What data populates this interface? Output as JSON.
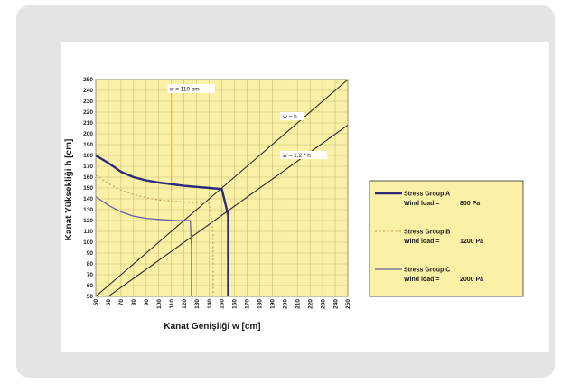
{
  "chart_data": {
    "type": "line",
    "xlabel": "Kanat Genişliği  w  [cm]",
    "ylabel": "Kanat Yüksekliği  h  [cm]",
    "xlim": [
      50,
      250
    ],
    "ylim": [
      50,
      250
    ],
    "x_ticks": [
      "50",
      "60",
      "70",
      "80",
      "90",
      "100",
      "110",
      "120",
      "130",
      "140",
      "150",
      "160",
      "170",
      "180",
      "190",
      "200",
      "210",
      "220",
      "230",
      "240",
      "250"
    ],
    "y_ticks": [
      "50",
      "60",
      "70",
      "80",
      "90",
      "100",
      "110",
      "120",
      "130",
      "140",
      "150",
      "160",
      "170",
      "180",
      "190",
      "200",
      "210",
      "220",
      "230",
      "240",
      "250"
    ],
    "grid": true,
    "legend_position": "right",
    "series": [
      {
        "name": "Stress Group A",
        "load_label": "Wind load =",
        "load_value": "800 Pa",
        "style": "solid-thick",
        "color": "#2b2a78",
        "points": [
          [
            50,
            180
          ],
          [
            60,
            173
          ],
          [
            70,
            165
          ],
          [
            80,
            160
          ],
          [
            90,
            157
          ],
          [
            100,
            155
          ],
          [
            120,
            152
          ],
          [
            140,
            150
          ],
          [
            150,
            149
          ],
          [
            155,
            125
          ],
          [
            155,
            50
          ]
        ]
      },
      {
        "name": "Stress Group B",
        "load_label": "Wind load =",
        "load_value": "1200 Pa",
        "style": "dotted",
        "color": "#c9a25a",
        "points": [
          [
            50,
            162
          ],
          [
            60,
            154
          ],
          [
            70,
            148
          ],
          [
            80,
            144
          ],
          [
            90,
            141
          ],
          [
            100,
            139
          ],
          [
            120,
            137
          ],
          [
            140,
            136
          ],
          [
            143,
            110
          ],
          [
            143,
            50
          ]
        ]
      },
      {
        "name": "Stress Group C",
        "load_label": "Wind load =",
        "load_value": "2000 Pa",
        "style": "solid-thin",
        "color": "#6a5fa0",
        "points": [
          [
            50,
            142
          ],
          [
            60,
            134
          ],
          [
            70,
            128
          ],
          [
            80,
            124
          ],
          [
            90,
            122
          ],
          [
            100,
            121
          ],
          [
            115,
            120
          ],
          [
            125,
            120
          ],
          [
            126,
            95
          ],
          [
            126,
            50
          ]
        ]
      }
    ],
    "reference_lines": [
      {
        "label": "w = h",
        "points": [
          [
            50,
            50
          ],
          [
            250,
            250
          ]
        ]
      },
      {
        "label": "w = 1,2 * h",
        "points": [
          [
            60,
            50
          ],
          [
            250,
            208
          ]
        ]
      }
    ],
    "annotations": [
      {
        "label": "w = 110 cm",
        "x": 110,
        "color": "#f2b84b"
      }
    ],
    "colors": {
      "plot_bg": "#fbf1a6",
      "legend_bg": "#fbf1a6",
      "grid": "#c9b97a"
    }
  }
}
